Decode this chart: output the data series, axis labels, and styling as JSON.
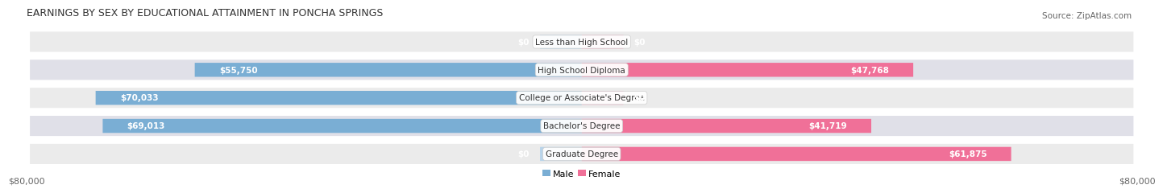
{
  "title": "EARNINGS BY SEX BY EDUCATIONAL ATTAINMENT IN PONCHA SPRINGS",
  "source": "Source: ZipAtlas.com",
  "categories": [
    "Less than High School",
    "High School Diploma",
    "College or Associate's Degree",
    "Bachelor's Degree",
    "Graduate Degree"
  ],
  "male_values": [
    0,
    55750,
    70033,
    69013,
    0
  ],
  "female_values": [
    0,
    47768,
    0,
    41719,
    61875
  ],
  "male_labels": [
    "$0",
    "$55,750",
    "$70,033",
    "$69,013",
    "$0"
  ],
  "female_labels": [
    "$0",
    "$47,768",
    "$0",
    "$41,719",
    "$61,875"
  ],
  "male_color": "#7aaed4",
  "female_color": "#f07098",
  "male_color_light": "#b8d4ea",
  "female_color_light": "#f5b8cc",
  "row_bg_even": "#ebebeb",
  "row_bg_odd": "#e0e0e8",
  "axis_max": 80000,
  "xlabel_left": "$80,000",
  "xlabel_right": "$80,000",
  "title_fontsize": 9,
  "source_fontsize": 7.5,
  "label_fontsize": 7.5,
  "tick_fontsize": 8,
  "background_color": "#ffffff",
  "zero_stub": 6000
}
